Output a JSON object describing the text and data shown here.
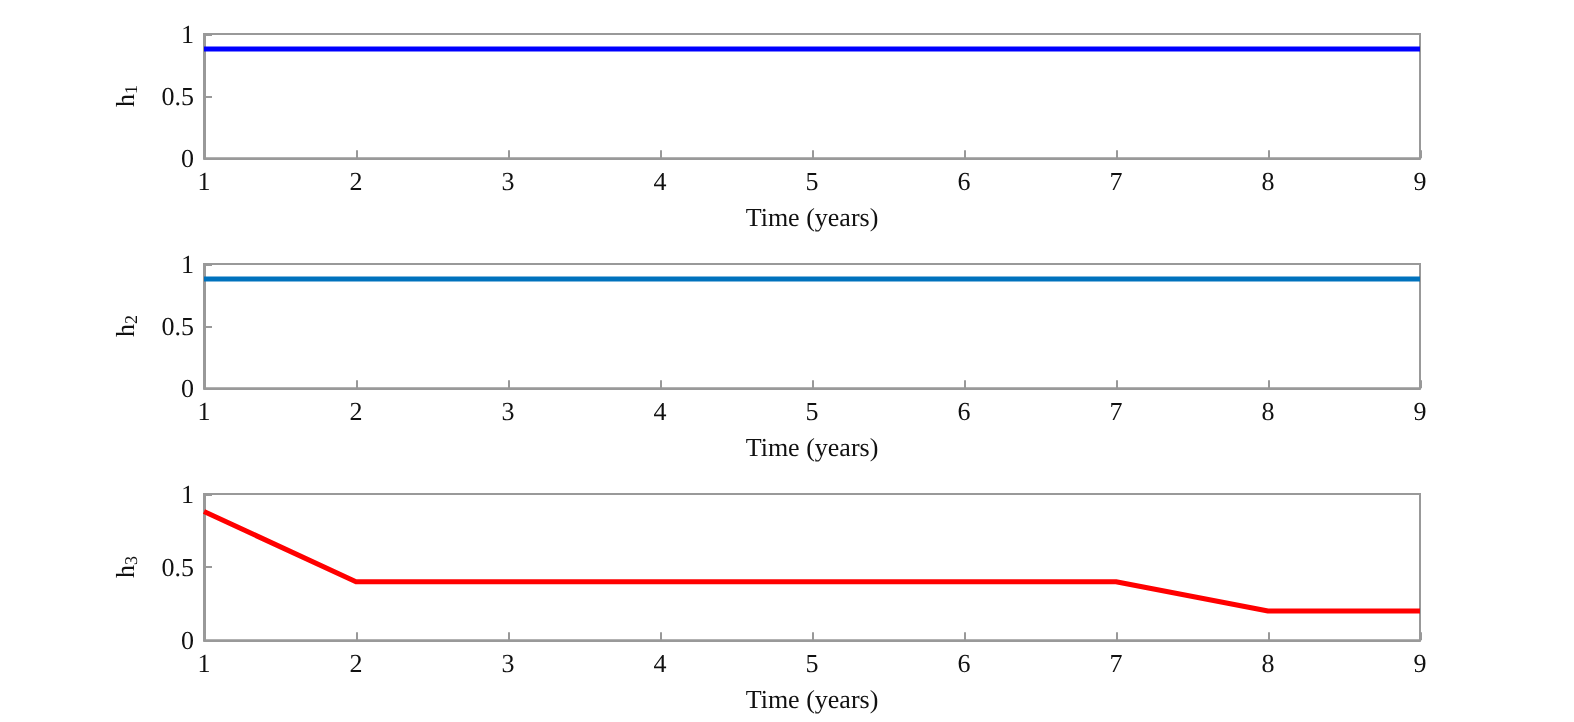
{
  "chart_data": [
    {
      "type": "line",
      "xlabel": "Time (years)",
      "ylabel": "h$_{1}$",
      "x": [
        1,
        2,
        3,
        4,
        5,
        6,
        7,
        8,
        9
      ],
      "series": [
        {
          "color": "#0000ff",
          "values": [
            0.88,
            0.88,
            0.88,
            0.88,
            0.88,
            0.88,
            0.88,
            0.88,
            0.88
          ]
        }
      ],
      "xlim": [
        1,
        9
      ],
      "xticks": [
        1,
        2,
        3,
        4,
        5,
        6,
        7,
        8,
        9
      ],
      "ylim": [
        0,
        1
      ],
      "yticks": [
        0,
        0.5,
        1
      ],
      "grid": false,
      "legend": false,
      "marker": "none",
      "line_style": "solid"
    },
    {
      "type": "line",
      "xlabel": "Time (years)",
      "ylabel": "h$_{2}$",
      "x": [
        1,
        2,
        3,
        4,
        5,
        6,
        7,
        8,
        9
      ],
      "series": [
        {
          "color": "#0072bd",
          "values": [
            0.88,
            0.88,
            0.88,
            0.88,
            0.88,
            0.88,
            0.88,
            0.88,
            0.88
          ]
        }
      ],
      "xlim": [
        1,
        9
      ],
      "xticks": [
        1,
        2,
        3,
        4,
        5,
        6,
        7,
        8,
        9
      ],
      "ylim": [
        0,
        1
      ],
      "yticks": [
        0,
        0.5,
        1
      ],
      "grid": false,
      "legend": false,
      "marker": "none",
      "line_style": "solid"
    },
    {
      "type": "line",
      "xlabel": "Time (years)",
      "ylabel": "h$_{3}$",
      "x": [
        1,
        2,
        3,
        4,
        5,
        6,
        7,
        8,
        9
      ],
      "series": [
        {
          "color": "#ff0000",
          "values": [
            0.88,
            0.4,
            0.4,
            0.4,
            0.4,
            0.4,
            0.4,
            0.2,
            0.2
          ]
        }
      ],
      "xlim": [
        1,
        9
      ],
      "xticks": [
        1,
        2,
        3,
        4,
        5,
        6,
        7,
        8,
        9
      ],
      "ylim": [
        0,
        1
      ],
      "yticks": [
        0,
        0.5,
        1
      ],
      "grid": false,
      "legend": false,
      "marker": "none",
      "line_style": "solid"
    }
  ]
}
